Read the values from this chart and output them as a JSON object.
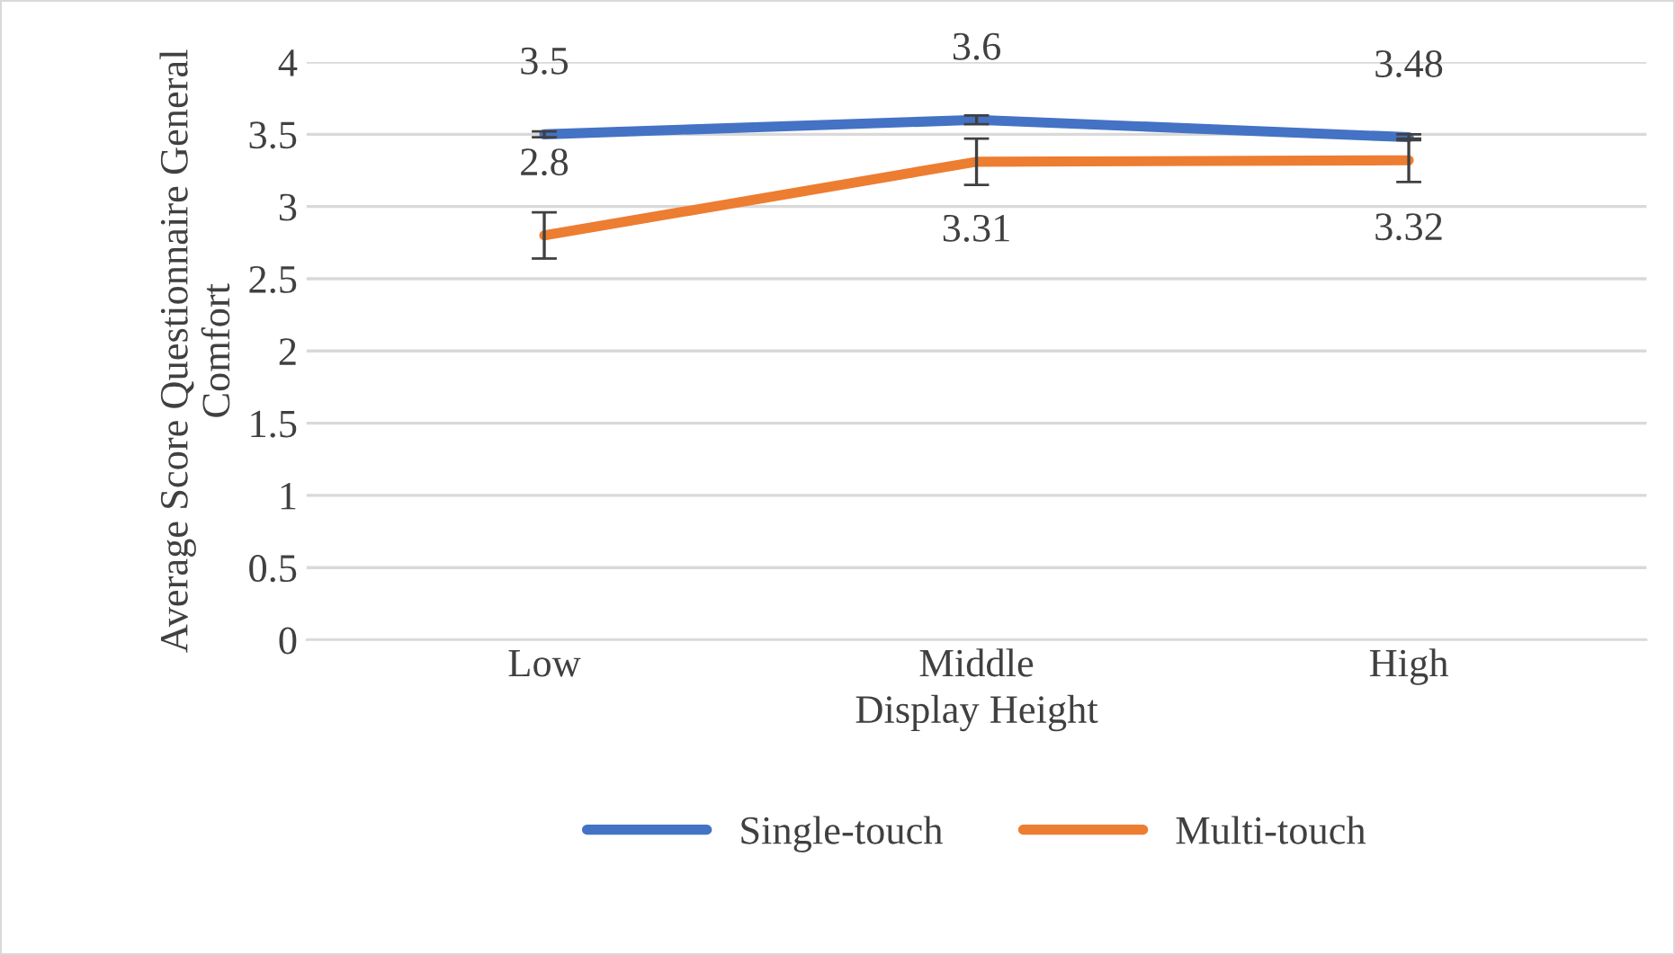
{
  "chart_data": {
    "type": "line",
    "xlabel": "Display Height",
    "ylabel": "Average Score Questionnaire General Comfort",
    "categories": [
      "Low",
      "Middle",
      "High"
    ],
    "series": [
      {
        "name": "Single-touch",
        "color": "#4472c4",
        "values": [
          3.5,
          3.6,
          3.48
        ],
        "errors": [
          0.02,
          0.03,
          0.02
        ]
      },
      {
        "name": "Multi-touch",
        "color": "#ed7d31",
        "values": [
          2.8,
          3.31,
          3.32
        ],
        "errors": [
          0.16,
          0.16,
          0.15
        ]
      }
    ],
    "ylim": [
      0,
      4
    ],
    "yticks": [
      0,
      0.5,
      1,
      1.5,
      2,
      2.5,
      3,
      3.5,
      4
    ],
    "grid": "y",
    "legend": "bottom",
    "data_labels": true,
    "marker": "none",
    "line_style": "solid"
  }
}
